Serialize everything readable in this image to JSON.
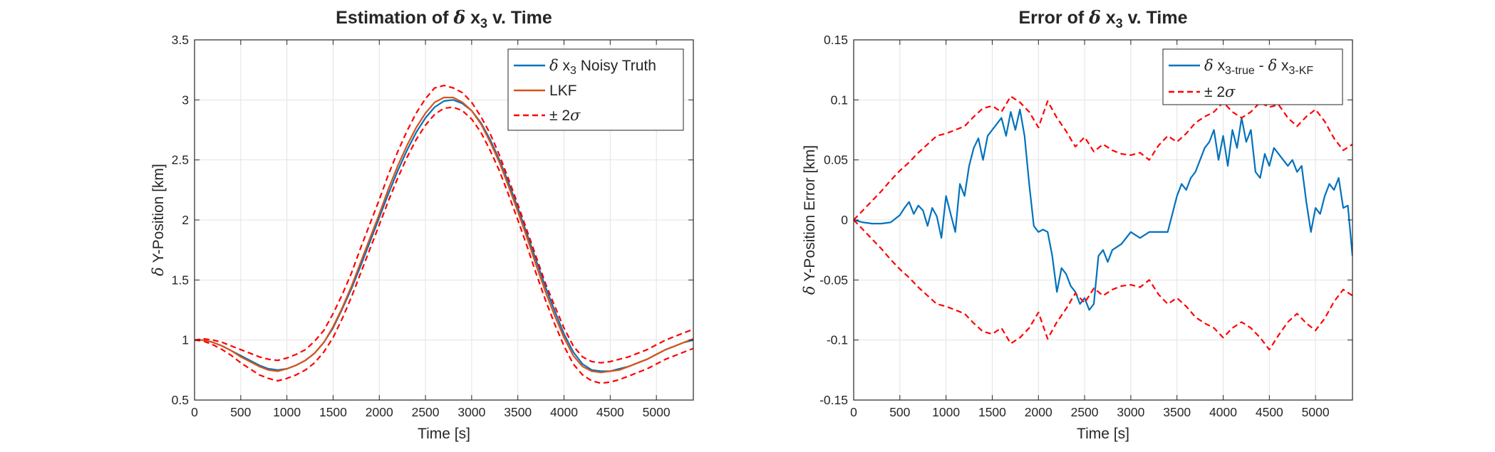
{
  "chart_data": [
    {
      "type": "line",
      "title": {
        "pre": "Estimation of ",
        "sym": "δ",
        "var": " x",
        "sub": "3",
        "post": " v. Time"
      },
      "xlabel": "Time [s]",
      "ylabel": {
        "sym": "δ",
        "text": " Y-Position [km]"
      },
      "xlim": [
        0,
        5400
      ],
      "ylim": [
        0.5,
        3.5
      ],
      "xticks": [
        0,
        500,
        1000,
        1500,
        2000,
        2500,
        3000,
        3500,
        4000,
        4500,
        5000
      ],
      "xtick_labels": [
        "0",
        "500",
        "1000",
        "1500",
        "2000",
        "2500",
        "3000",
        "3500",
        "4000",
        "4500",
        "5000"
      ],
      "yticks": [
        0.5,
        1,
        1.5,
        2,
        2.5,
        3,
        3.5
      ],
      "ytick_labels": [
        "0.5",
        "1",
        "1.5",
        "2",
        "2.5",
        "3",
        "3.5"
      ],
      "grid": true,
      "legend_position": "top-right",
      "legend": [
        {
          "sym": "δ",
          "pre": " x",
          "sub": "3",
          "post": " Noisy Truth",
          "color": "#0072BD",
          "dash": false
        },
        {
          "pre": "LKF",
          "sub": "",
          "post": "",
          "color": "#D95319",
          "dash": false
        },
        {
          "pre": "± 2",
          "sym_after": "σ",
          "sub": "",
          "post": "",
          "color": "#FF0000",
          "dash": true
        }
      ],
      "series": [
        {
          "id": "truth",
          "color": "#0072BD",
          "dash": false,
          "width": 2.2,
          "x": [
            0,
            100,
            200,
            300,
            400,
            500,
            600,
            700,
            800,
            900,
            1000,
            1100,
            1200,
            1300,
            1400,
            1500,
            1600,
            1700,
            1800,
            1900,
            2000,
            2100,
            2200,
            2300,
            2400,
            2500,
            2600,
            2700,
            2800,
            2900,
            3000,
            3100,
            3200,
            3300,
            3400,
            3500,
            3600,
            3700,
            3800,
            3900,
            4000,
            4100,
            4200,
            4300,
            4400,
            4500,
            4600,
            4700,
            4800,
            4900,
            5000,
            5100,
            5200,
            5300,
            5400
          ],
          "y": [
            1.0,
            1.0,
            0.98,
            0.95,
            0.91,
            0.87,
            0.83,
            0.79,
            0.76,
            0.75,
            0.76,
            0.79,
            0.83,
            0.89,
            0.98,
            1.1,
            1.26,
            1.43,
            1.62,
            1.82,
            2.02,
            2.22,
            2.41,
            2.58,
            2.73,
            2.85,
            2.94,
            2.99,
            3.0,
            2.97,
            2.91,
            2.81,
            2.67,
            2.5,
            2.31,
            2.1,
            1.88,
            1.66,
            1.44,
            1.24,
            1.05,
            0.9,
            0.8,
            0.75,
            0.74,
            0.74,
            0.76,
            0.78,
            0.81,
            0.84,
            0.88,
            0.92,
            0.95,
            0.98,
            1.0
          ]
        },
        {
          "id": "lkf",
          "color": "#D95319",
          "dash": false,
          "width": 2.2,
          "x": [
            0,
            100,
            200,
            300,
            400,
            500,
            600,
            700,
            800,
            900,
            1000,
            1100,
            1200,
            1300,
            1400,
            1500,
            1600,
            1700,
            1800,
            1900,
            2000,
            2100,
            2200,
            2300,
            2400,
            2500,
            2600,
            2700,
            2800,
            2900,
            3000,
            3100,
            3200,
            3300,
            3400,
            3500,
            3600,
            3700,
            3800,
            3900,
            4000,
            4100,
            4200,
            4300,
            4400,
            4500,
            4600,
            4700,
            4800,
            4900,
            5000,
            5100,
            5200,
            5300,
            5400
          ],
          "y": [
            1.0,
            1.0,
            0.98,
            0.95,
            0.91,
            0.86,
            0.82,
            0.78,
            0.75,
            0.74,
            0.76,
            0.79,
            0.83,
            0.89,
            0.98,
            1.11,
            1.27,
            1.45,
            1.65,
            1.85,
            2.05,
            2.26,
            2.45,
            2.62,
            2.77,
            2.89,
            2.98,
            3.02,
            3.02,
            2.98,
            2.91,
            2.8,
            2.65,
            2.48,
            2.28,
            2.07,
            1.85,
            1.62,
            1.4,
            1.2,
            1.02,
            0.87,
            0.78,
            0.74,
            0.73,
            0.74,
            0.75,
            0.78,
            0.81,
            0.84,
            0.88,
            0.92,
            0.95,
            0.98,
            1.01
          ]
        },
        {
          "id": "upper",
          "color": "#FF0000",
          "dash": true,
          "width": 2.2,
          "x": [
            0,
            100,
            200,
            300,
            400,
            500,
            600,
            700,
            800,
            900,
            1000,
            1100,
            1200,
            1300,
            1400,
            1500,
            1600,
            1700,
            1800,
            1900,
            2000,
            2100,
            2200,
            2300,
            2400,
            2500,
            2600,
            2700,
            2800,
            2900,
            3000,
            3100,
            3200,
            3300,
            3400,
            3500,
            3600,
            3700,
            3800,
            3900,
            4000,
            4100,
            4200,
            4300,
            4400,
            4500,
            4600,
            4700,
            4800,
            4900,
            5000,
            5100,
            5200,
            5300,
            5400
          ],
          "y": [
            1.0,
            1.01,
            1.0,
            0.98,
            0.95,
            0.92,
            0.89,
            0.86,
            0.84,
            0.83,
            0.85,
            0.88,
            0.92,
            0.99,
            1.08,
            1.22,
            1.38,
            1.56,
            1.77,
            1.97,
            2.17,
            2.38,
            2.57,
            2.74,
            2.89,
            3.01,
            3.1,
            3.12,
            3.1,
            3.06,
            2.98,
            2.86,
            2.72,
            2.54,
            2.34,
            2.13,
            1.91,
            1.69,
            1.47,
            1.28,
            1.1,
            0.95,
            0.86,
            0.82,
            0.81,
            0.82,
            0.84,
            0.86,
            0.89,
            0.92,
            0.96,
            1.0,
            1.03,
            1.06,
            1.09
          ]
        },
        {
          "id": "lower",
          "color": "#FF0000",
          "dash": true,
          "width": 2.2,
          "x": [
            0,
            100,
            200,
            300,
            400,
            500,
            600,
            700,
            800,
            900,
            1000,
            1100,
            1200,
            1300,
            1400,
            1500,
            1600,
            1700,
            1800,
            1900,
            2000,
            2100,
            2200,
            2300,
            2400,
            2500,
            2600,
            2700,
            2800,
            2900,
            3000,
            3100,
            3200,
            3300,
            3400,
            3500,
            3600,
            3700,
            3800,
            3900,
            4000,
            4100,
            4200,
            4300,
            4400,
            4500,
            4600,
            4700,
            4800,
            4900,
            5000,
            5100,
            5200,
            5300,
            5400
          ],
          "y": [
            1.0,
            0.99,
            0.96,
            0.92,
            0.87,
            0.81,
            0.76,
            0.71,
            0.68,
            0.66,
            0.68,
            0.71,
            0.75,
            0.81,
            0.9,
            1.02,
            1.18,
            1.36,
            1.56,
            1.76,
            1.96,
            2.16,
            2.35,
            2.52,
            2.67,
            2.79,
            2.88,
            2.93,
            2.94,
            2.91,
            2.84,
            2.73,
            2.58,
            2.41,
            2.21,
            2.0,
            1.78,
            1.55,
            1.33,
            1.13,
            0.95,
            0.8,
            0.71,
            0.66,
            0.64,
            0.65,
            0.67,
            0.7,
            0.73,
            0.76,
            0.8,
            0.84,
            0.87,
            0.9,
            0.93
          ]
        }
      ]
    },
    {
      "type": "line",
      "title": {
        "pre": "Error of ",
        "sym": "δ",
        "var": " x",
        "sub": "3",
        "post": " v. Time"
      },
      "xlabel": "Time [s]",
      "ylabel": {
        "sym": "δ",
        "text": " Y-Position Error [km]"
      },
      "xlim": [
        0,
        5400
      ],
      "ylim": [
        -0.15,
        0.15
      ],
      "xticks": [
        0,
        500,
        1000,
        1500,
        2000,
        2500,
        3000,
        3500,
        4000,
        4500,
        5000
      ],
      "xtick_labels": [
        "0",
        "500",
        "1000",
        "1500",
        "2000",
        "2500",
        "3000",
        "3500",
        "4000",
        "4500",
        "5000"
      ],
      "yticks": [
        -0.15,
        -0.1,
        -0.05,
        0,
        0.05,
        0.1,
        0.15
      ],
      "ytick_labels": [
        "-0.15",
        "-0.1",
        "-0.05",
        "0",
        "0.05",
        "0.1",
        "0.15"
      ],
      "grid": true,
      "legend_position": "top-right",
      "legend": [
        {
          "sym": "δ",
          "pre": " x",
          "sub": "3-true",
          "mid_sym": "δ",
          "mid": " - ",
          "post_pre": " x",
          "post_sub": "3-KF",
          "color": "#0072BD",
          "dash": false
        },
        {
          "pre": "± 2",
          "sym_after": "σ",
          "color": "#FF0000",
          "dash": true
        }
      ],
      "series": [
        {
          "id": "error",
          "color": "#0072BD",
          "dash": false,
          "width": 2.2,
          "x": [
            0,
            100,
            200,
            300,
            400,
            500,
            550,
            600,
            650,
            700,
            750,
            800,
            850,
            900,
            950,
            1000,
            1050,
            1100,
            1150,
            1200,
            1250,
            1300,
            1350,
            1400,
            1450,
            1500,
            1550,
            1600,
            1650,
            1700,
            1750,
            1800,
            1850,
            1900,
            1950,
            2000,
            2050,
            2100,
            2150,
            2200,
            2250,
            2300,
            2350,
            2400,
            2450,
            2500,
            2550,
            2600,
            2650,
            2700,
            2750,
            2800,
            2900,
            3000,
            3100,
            3200,
            3300,
            3400,
            3450,
            3500,
            3550,
            3600,
            3650,
            3700,
            3750,
            3800,
            3850,
            3900,
            3950,
            4000,
            4050,
            4100,
            4150,
            4200,
            4250,
            4300,
            4350,
            4400,
            4450,
            4500,
            4550,
            4600,
            4650,
            4700,
            4750,
            4800,
            4850,
            4900,
            4950,
            5000,
            5050,
            5100,
            5150,
            5200,
            5250,
            5300,
            5350,
            5400
          ],
          "y": [
            0.0,
            -0.002,
            -0.003,
            -0.003,
            -0.002,
            0.004,
            0.01,
            0.015,
            0.005,
            0.012,
            0.008,
            -0.005,
            0.01,
            0.003,
            -0.015,
            0.02,
            0.005,
            -0.01,
            0.03,
            0.02,
            0.045,
            0.06,
            0.068,
            0.05,
            0.07,
            0.075,
            0.08,
            0.085,
            0.07,
            0.09,
            0.075,
            0.092,
            0.07,
            0.03,
            -0.005,
            -0.01,
            -0.008,
            -0.01,
            -0.03,
            -0.06,
            -0.04,
            -0.045,
            -0.055,
            -0.06,
            -0.07,
            -0.065,
            -0.075,
            -0.07,
            -0.03,
            -0.025,
            -0.035,
            -0.025,
            -0.02,
            -0.01,
            -0.015,
            -0.01,
            -0.01,
            -0.01,
            0.005,
            0.02,
            0.03,
            0.025,
            0.035,
            0.04,
            0.05,
            0.06,
            0.065,
            0.075,
            0.05,
            0.07,
            0.045,
            0.075,
            0.06,
            0.085,
            0.065,
            0.075,
            0.04,
            0.035,
            0.055,
            0.045,
            0.06,
            0.055,
            0.05,
            0.045,
            0.05,
            0.04,
            0.045,
            0.015,
            -0.01,
            0.01,
            0.005,
            0.02,
            0.03,
            0.025,
            0.035,
            0.01,
            0.012,
            -0.03
          ]
        },
        {
          "id": "upper",
          "color": "#FF0000",
          "dash": true,
          "width": 2.2,
          "x": [
            0,
            100,
            200,
            300,
            400,
            500,
            600,
            700,
            800,
            900,
            1000,
            1100,
            1200,
            1300,
            1400,
            1500,
            1600,
            1700,
            1800,
            1900,
            2000,
            2100,
            2200,
            2300,
            2400,
            2500,
            2600,
            2700,
            2800,
            2900,
            3000,
            3100,
            3200,
            3300,
            3400,
            3500,
            3600,
            3700,
            3800,
            3900,
            4000,
            4100,
            4200,
            4300,
            4400,
            4500,
            4600,
            4700,
            4800,
            4900,
            5000,
            5100,
            5200,
            5300,
            5400
          ],
          "y": [
            0.0,
            0.008,
            0.016,
            0.024,
            0.033,
            0.041,
            0.048,
            0.056,
            0.063,
            0.07,
            0.072,
            0.075,
            0.078,
            0.086,
            0.093,
            0.095,
            0.09,
            0.103,
            0.098,
            0.09,
            0.077,
            0.099,
            0.085,
            0.074,
            0.061,
            0.069,
            0.057,
            0.063,
            0.058,
            0.055,
            0.054,
            0.056,
            0.05,
            0.062,
            0.07,
            0.065,
            0.072,
            0.081,
            0.086,
            0.09,
            0.098,
            0.09,
            0.085,
            0.09,
            0.098,
            0.094,
            0.096,
            0.085,
            0.078,
            0.086,
            0.092,
            0.082,
            0.068,
            0.058,
            0.063
          ]
        },
        {
          "id": "lower",
          "color": "#FF0000",
          "dash": true,
          "width": 2.2,
          "x": [
            0,
            100,
            200,
            300,
            400,
            500,
            600,
            700,
            800,
            900,
            1000,
            1100,
            1200,
            1300,
            1400,
            1500,
            1600,
            1700,
            1800,
            1900,
            2000,
            2100,
            2200,
            2300,
            2400,
            2500,
            2600,
            2700,
            2800,
            2900,
            3000,
            3100,
            3200,
            3300,
            3400,
            3500,
            3600,
            3700,
            3800,
            3900,
            4000,
            4100,
            4200,
            4300,
            4400,
            4500,
            4600,
            4700,
            4800,
            4900,
            5000,
            5100,
            5200,
            5300,
            5400
          ],
          "y": [
            0.0,
            -0.008,
            -0.016,
            -0.024,
            -0.033,
            -0.041,
            -0.048,
            -0.056,
            -0.063,
            -0.07,
            -0.072,
            -0.075,
            -0.078,
            -0.086,
            -0.093,
            -0.095,
            -0.09,
            -0.103,
            -0.098,
            -0.09,
            -0.077,
            -0.099,
            -0.085,
            -0.074,
            -0.061,
            -0.069,
            -0.057,
            -0.063,
            -0.058,
            -0.055,
            -0.054,
            -0.056,
            -0.05,
            -0.062,
            -0.07,
            -0.065,
            -0.072,
            -0.081,
            -0.086,
            -0.09,
            -0.098,
            -0.09,
            -0.085,
            -0.09,
            -0.098,
            -0.108,
            -0.096,
            -0.085,
            -0.078,
            -0.086,
            -0.092,
            -0.082,
            -0.068,
            -0.058,
            -0.063
          ]
        }
      ]
    }
  ]
}
